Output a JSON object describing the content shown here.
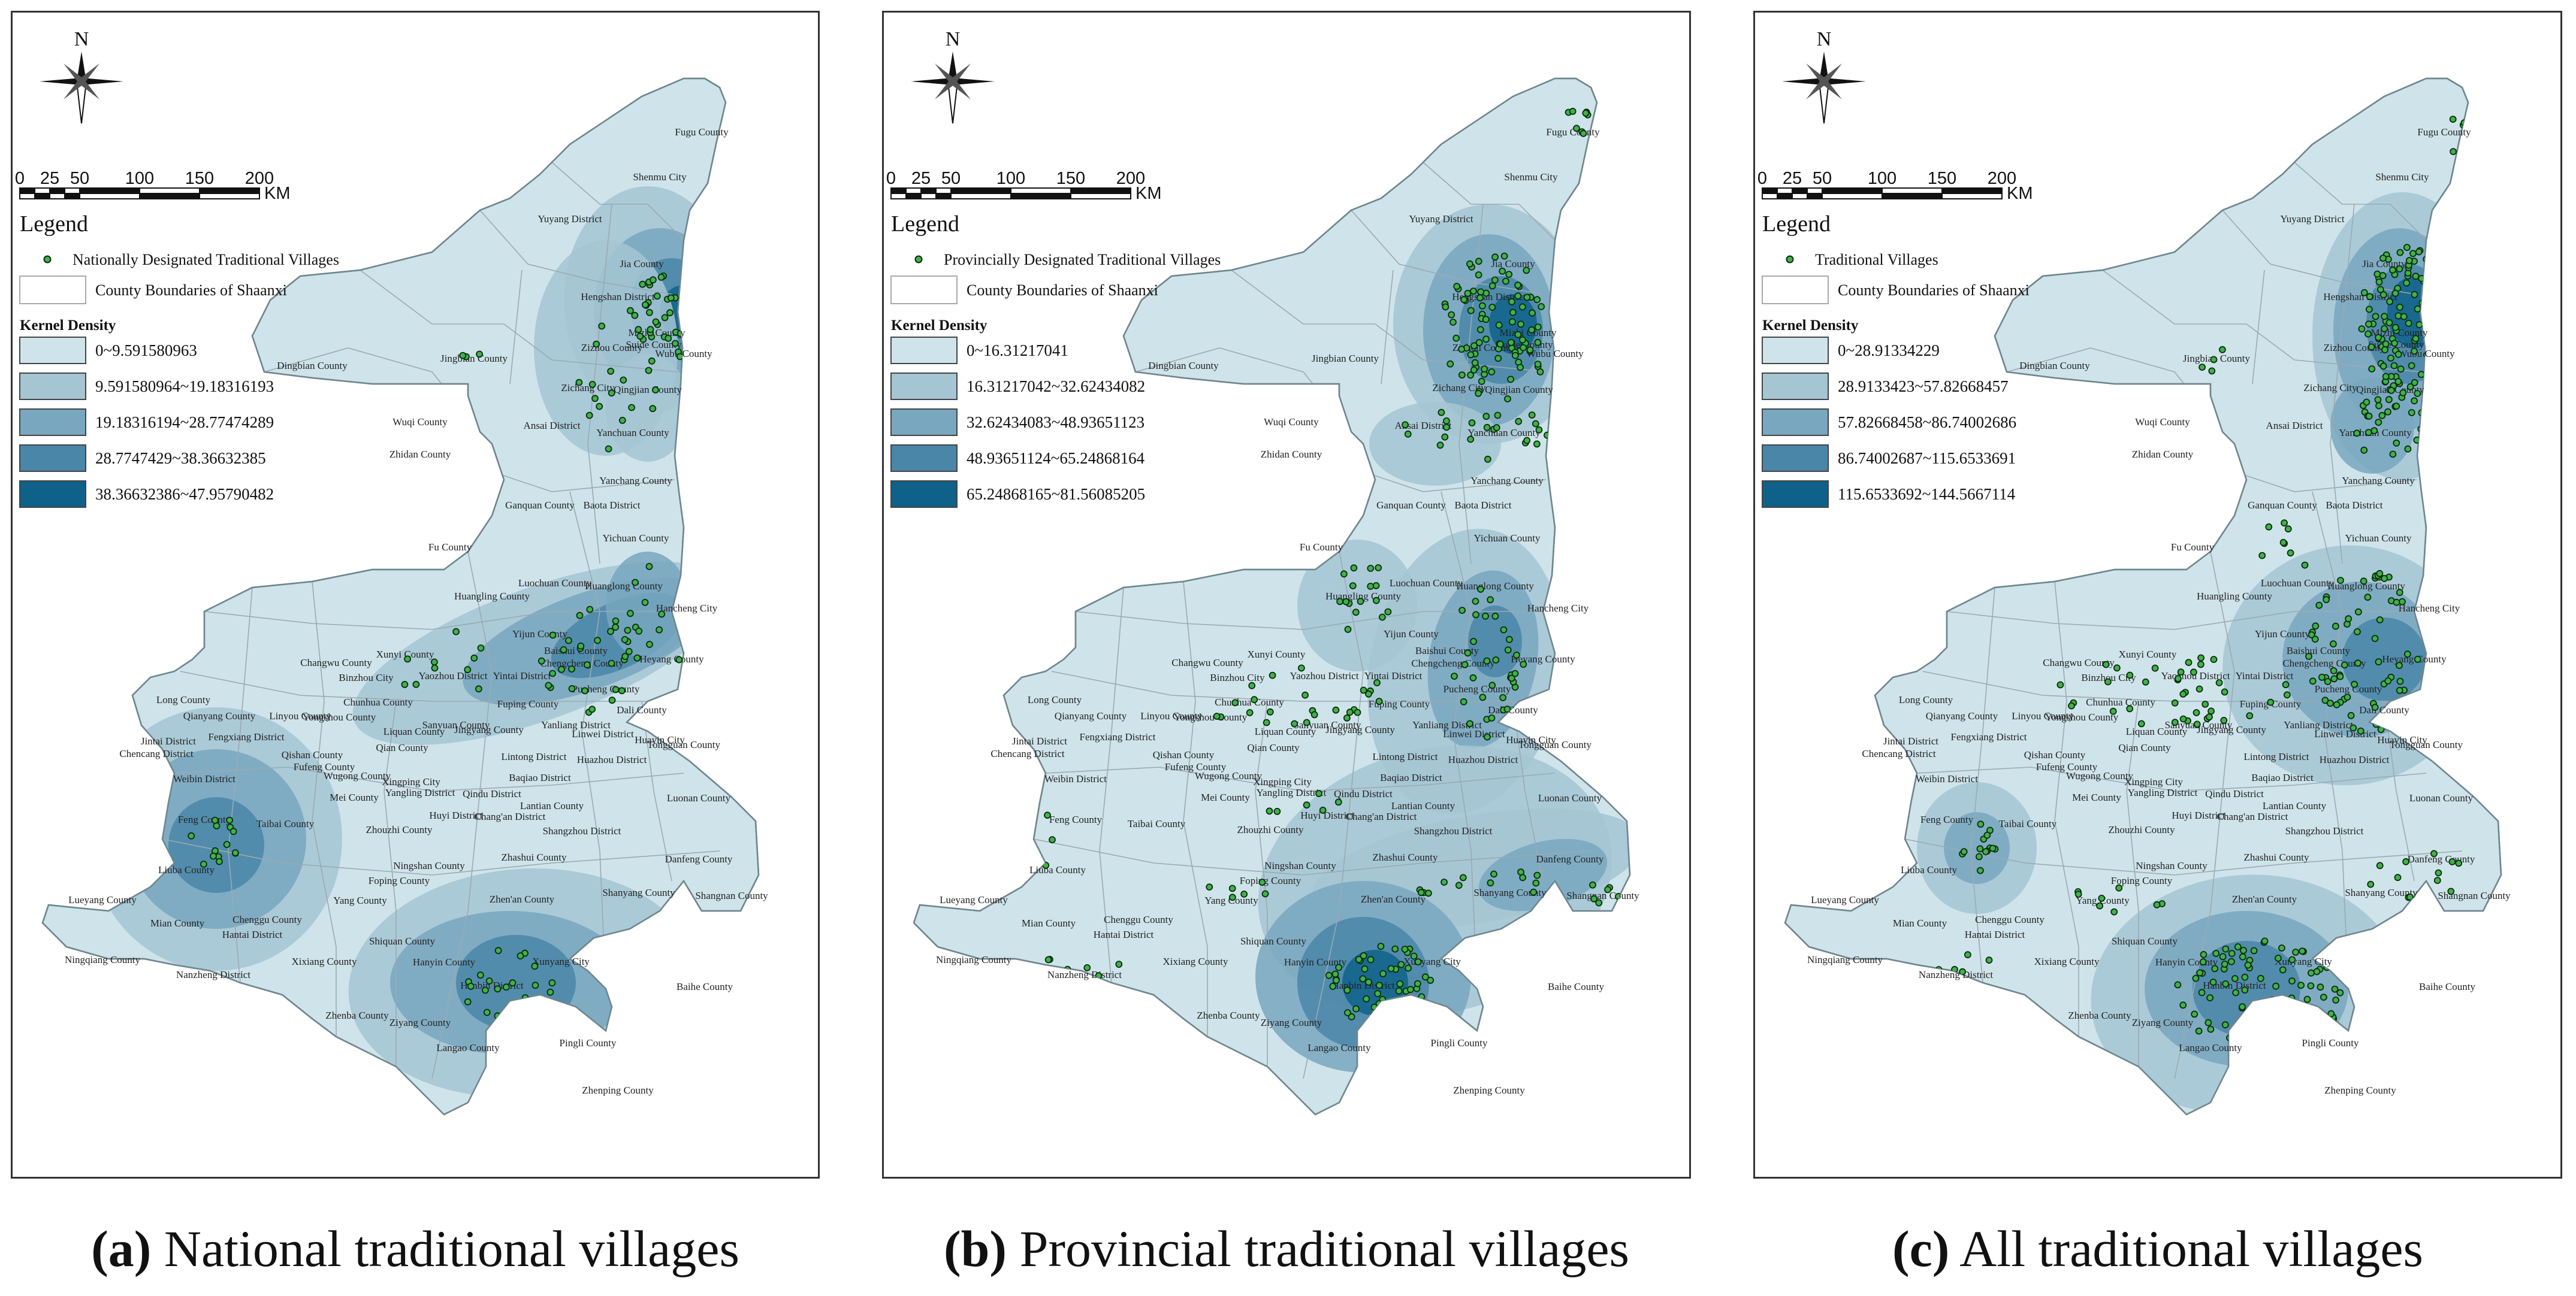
{
  "colors": {
    "background": "#cfe4ea",
    "boundary": "#9aaab2",
    "kd": [
      "#cfe4ea",
      "#a5c5d3",
      "#78a7bf",
      "#4a86a8",
      "#0f6189"
    ],
    "village_fill": "#3fb24a",
    "village_stroke": "#0b2a0b"
  },
  "icons": {
    "north_arrow": "compass-star-icon",
    "scale_bar": "scale-bar-icon",
    "village_point": "green-dot-icon",
    "county_boundary": "white-rectangle-icon"
  },
  "common": {
    "north_label": "N",
    "scale_ticks": [
      "0",
      "25",
      "50",
      "100",
      "150",
      "200"
    ],
    "scale_unit": "KM",
    "legend_title": "Legend",
    "boundary_label": "County Boundaries of Shaanxi",
    "kd_title": "Kernel Density"
  },
  "place_names": [
    "Fugu County",
    "Shenmu City",
    "Yuyang District",
    "Jia County",
    "Hengshan District",
    "Mizhi County",
    "Suide County",
    "Wubu County",
    "Zizhou County",
    "Qingjian County",
    "Zichang City",
    "Yanchuan County",
    "Dingbian County",
    "Jingbian County",
    "Wuqi County",
    "Ansai District",
    "Zhidan County",
    "Yanchang County",
    "Ganquan County",
    "Baota District",
    "Fu County",
    "Yichuan County",
    "Luochuan County",
    "Huanglong County",
    "Huangling County",
    "Hancheng City",
    "Yijun County",
    "Heyang County",
    "Baishui County",
    "Chengcheng County",
    "Pucheng County",
    "Dali County",
    "Tongguan County",
    "Huayin City",
    "Changwu County",
    "Xunyi County",
    "Binzhou City",
    "Yaozhou District",
    "Yintai District",
    "Long County",
    "Qianyang County",
    "Linyou County",
    "Chunhua County",
    "Fuping County",
    "Jintai District",
    "Chencang District",
    "Fengxiang District",
    "Yongshou County",
    "Liquan County",
    "Sanyuan County",
    "Jingyang County",
    "Yanliang District",
    "Linwei District",
    "Huazhou District",
    "Weibin District",
    "Qishan County",
    "Fufeng County",
    "Qian County",
    "Wugong County",
    "Xingping City",
    "Baqiao District",
    "Lintong District",
    "Mei County",
    "Zhouzhi County",
    "Yangling District",
    "Qindu District",
    "Huyi District",
    "Chang'an District",
    "Lantian County",
    "Luonan County",
    "Feng County",
    "Taibai County",
    "Shangzhou District",
    "Danfeng County",
    "Liuba County",
    "Foping County",
    "Ningshan County",
    "Zhashui County",
    "Shangnan County",
    "Shanyang County",
    "Lueyang County",
    "Mian County",
    "Yang County",
    "Chenggu County",
    "Hantai District",
    "Zhen'an County",
    "Ningqiang County",
    "Nanzheng District",
    "Xixiang County",
    "Shiquan County",
    "Hanyin County",
    "Hanbin District",
    "Xunyang City",
    "Baihe County",
    "Zhenba County",
    "Ziyang County",
    "Langao County",
    "Pingli County",
    "Zhenping County"
  ],
  "panels": [
    {
      "id": "a",
      "caption_letter": "(a)",
      "caption_text": "National traditional villages",
      "point_label": "Nationally Designated Traditional Villages",
      "kd_classes": [
        "0~9.591580963",
        "9.591580964~19.18316193",
        "19.18316194~28.77474289",
        "28.7747429~38.36632385",
        "38.36632386~47.95790482"
      ]
    },
    {
      "id": "b",
      "caption_letter": "(b)",
      "caption_text": "Provincial traditional villages",
      "point_label": "Provincially Designated Traditional Villages",
      "kd_classes": [
        "0~16.31217041",
        "16.31217042~32.62434082",
        "32.62434083~48.93651123",
        "48.93651124~65.24868164",
        "65.24868165~81.56085205"
      ]
    },
    {
      "id": "c",
      "caption_letter": "(c)",
      "caption_text": "All traditional villages",
      "point_label": "Traditional Villages",
      "kd_classes": [
        "0~28.91334229",
        "28.9133423~57.82668457",
        "57.82668458~86.74002686",
        "86.74002687~115.6533691",
        "115.6533692~144.5667114"
      ]
    }
  ]
}
